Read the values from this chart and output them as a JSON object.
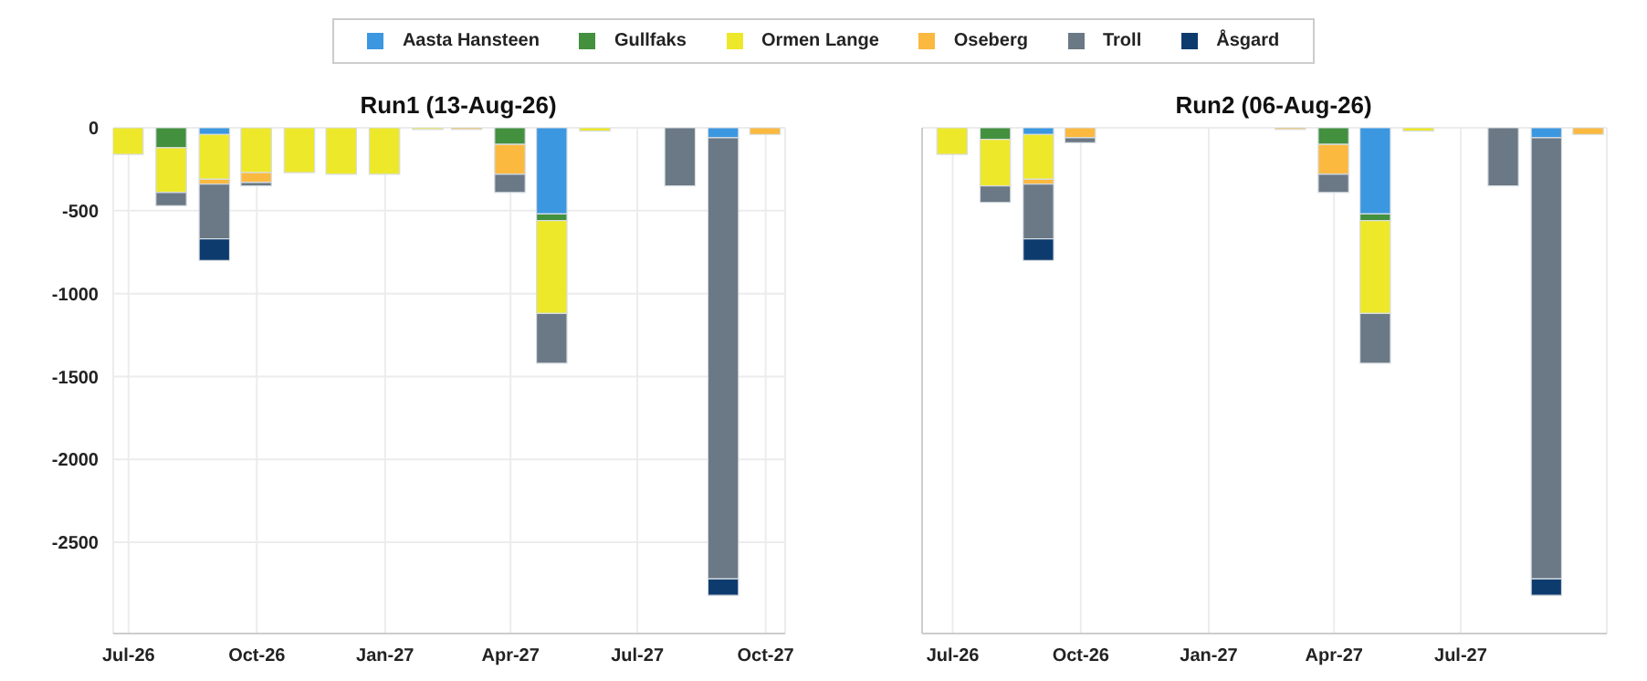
{
  "chart_data": [
    {
      "type": "bar",
      "title": "Run1 (13-Aug-26)",
      "stacked": true,
      "legend": "top",
      "grid": true,
      "x": [
        "2026-07",
        "2026-08",
        "2026-09",
        "2026-10",
        "2026-11",
        "2026-12",
        "2027-01",
        "2027-02",
        "2027-03",
        "2027-04",
        "2027-05",
        "2027-06",
        "2027-07",
        "2027-08",
        "2027-09",
        "2027-10"
      ],
      "series": [
        {
          "name": "Aasta Hansteen",
          "color": "#3b97e0",
          "values": [
            null,
            null,
            -40,
            null,
            null,
            null,
            null,
            null,
            null,
            null,
            -520,
            null,
            null,
            null,
            -60,
            null
          ]
        },
        {
          "name": "Gullfaks",
          "color": "#43903f",
          "values": [
            null,
            -120,
            null,
            null,
            null,
            null,
            null,
            null,
            null,
            -100,
            -40,
            null,
            null,
            null,
            null,
            null
          ]
        },
        {
          "name": "Ormen Lange",
          "color": "#eee82a",
          "values": [
            -160,
            -270,
            -270,
            -270,
            -270,
            -280,
            -280,
            -10,
            null,
            null,
            -560,
            -20,
            null,
            null,
            null,
            null
          ]
        },
        {
          "name": "Oseberg",
          "color": "#fbb940",
          "values": [
            null,
            null,
            -30,
            -60,
            null,
            null,
            null,
            null,
            -10,
            -180,
            null,
            null,
            null,
            null,
            null,
            -40
          ]
        },
        {
          "name": "Troll",
          "color": "#6b7885",
          "values": [
            null,
            -80,
            -330,
            -20,
            null,
            null,
            null,
            null,
            null,
            -110,
            -300,
            null,
            null,
            -350,
            -2660,
            null
          ]
        },
        {
          "name": "Åsgard",
          "color": "#0e3b6e",
          "values": [
            null,
            null,
            -130,
            null,
            null,
            null,
            null,
            null,
            null,
            null,
            null,
            null,
            null,
            null,
            -100,
            null
          ]
        }
      ],
      "xlim": [
        "2026-06-20",
        "2027-10-15"
      ],
      "xticks": [
        {
          "value": "2026-07",
          "label": "Jul-26"
        },
        {
          "value": "2026-10",
          "label": "Oct-26"
        },
        {
          "value": "2027-01",
          "label": "Jan-27"
        },
        {
          "value": "2027-04",
          "label": "Apr-27"
        },
        {
          "value": "2027-07",
          "label": "Jul-27"
        },
        {
          "value": "2027-10",
          "label": "Oct-27"
        }
      ],
      "ylim": [
        -3050,
        0
      ],
      "yticks": [
        0,
        -500,
        -1000,
        -1500,
        -2000,
        -2500
      ]
    },
    {
      "type": "bar",
      "title": "Run2 (06-Aug-26)",
      "stacked": true,
      "grid": true,
      "tick_labels": "x",
      "x": [
        "2026-07",
        "2026-08",
        "2026-09",
        "2026-10",
        "2026-11",
        "2026-12",
        "2027-01",
        "2027-02",
        "2027-03",
        "2027-04",
        "2027-05",
        "2027-06",
        "2027-07",
        "2027-08",
        "2027-09",
        "2027-10"
      ],
      "series": [
        {
          "name": "Aasta Hansteen",
          "color": "#3b97e0",
          "values": [
            null,
            null,
            -40,
            null,
            null,
            null,
            null,
            null,
            null,
            null,
            -520,
            null,
            null,
            null,
            -60,
            null
          ]
        },
        {
          "name": "Gullfaks",
          "color": "#43903f",
          "values": [
            null,
            -70,
            null,
            null,
            null,
            null,
            null,
            null,
            null,
            -100,
            -40,
            null,
            null,
            null,
            null,
            null
          ]
        },
        {
          "name": "Ormen Lange",
          "color": "#eee82a",
          "values": [
            -160,
            -280,
            -270,
            null,
            null,
            null,
            null,
            null,
            null,
            null,
            -560,
            -20,
            null,
            null,
            null,
            null
          ]
        },
        {
          "name": "Oseberg",
          "color": "#fbb940",
          "values": [
            null,
            null,
            -30,
            -60,
            null,
            null,
            null,
            null,
            -10,
            -180,
            null,
            null,
            null,
            null,
            null,
            -40
          ]
        },
        {
          "name": "Troll",
          "color": "#6b7885",
          "values": [
            null,
            -100,
            -330,
            -30,
            null,
            null,
            null,
            null,
            null,
            -110,
            -300,
            null,
            null,
            -350,
            -2660,
            null
          ]
        },
        {
          "name": "Åsgard",
          "color": "#0e3b6e",
          "values": [
            null,
            null,
            -130,
            null,
            null,
            null,
            null,
            null,
            null,
            null,
            null,
            null,
            null,
            null,
            -100,
            null
          ]
        }
      ],
      "xlim": [
        "2026-06-09",
        "2027-10-14"
      ],
      "xticks": [
        {
          "value": "2026-07",
          "label": "Jul-26"
        },
        {
          "value": "2026-10",
          "label": "Oct-26"
        },
        {
          "value": "2027-01",
          "label": "Jan-27"
        },
        {
          "value": "2027-04",
          "label": "Apr-27"
        },
        {
          "value": "2027-07",
          "label": "Jul-27"
        }
      ],
      "ylim": [
        -3050,
        0
      ],
      "yticks": [
        0,
        -500,
        -1000,
        -1500,
        -2000,
        -2500
      ]
    }
  ]
}
